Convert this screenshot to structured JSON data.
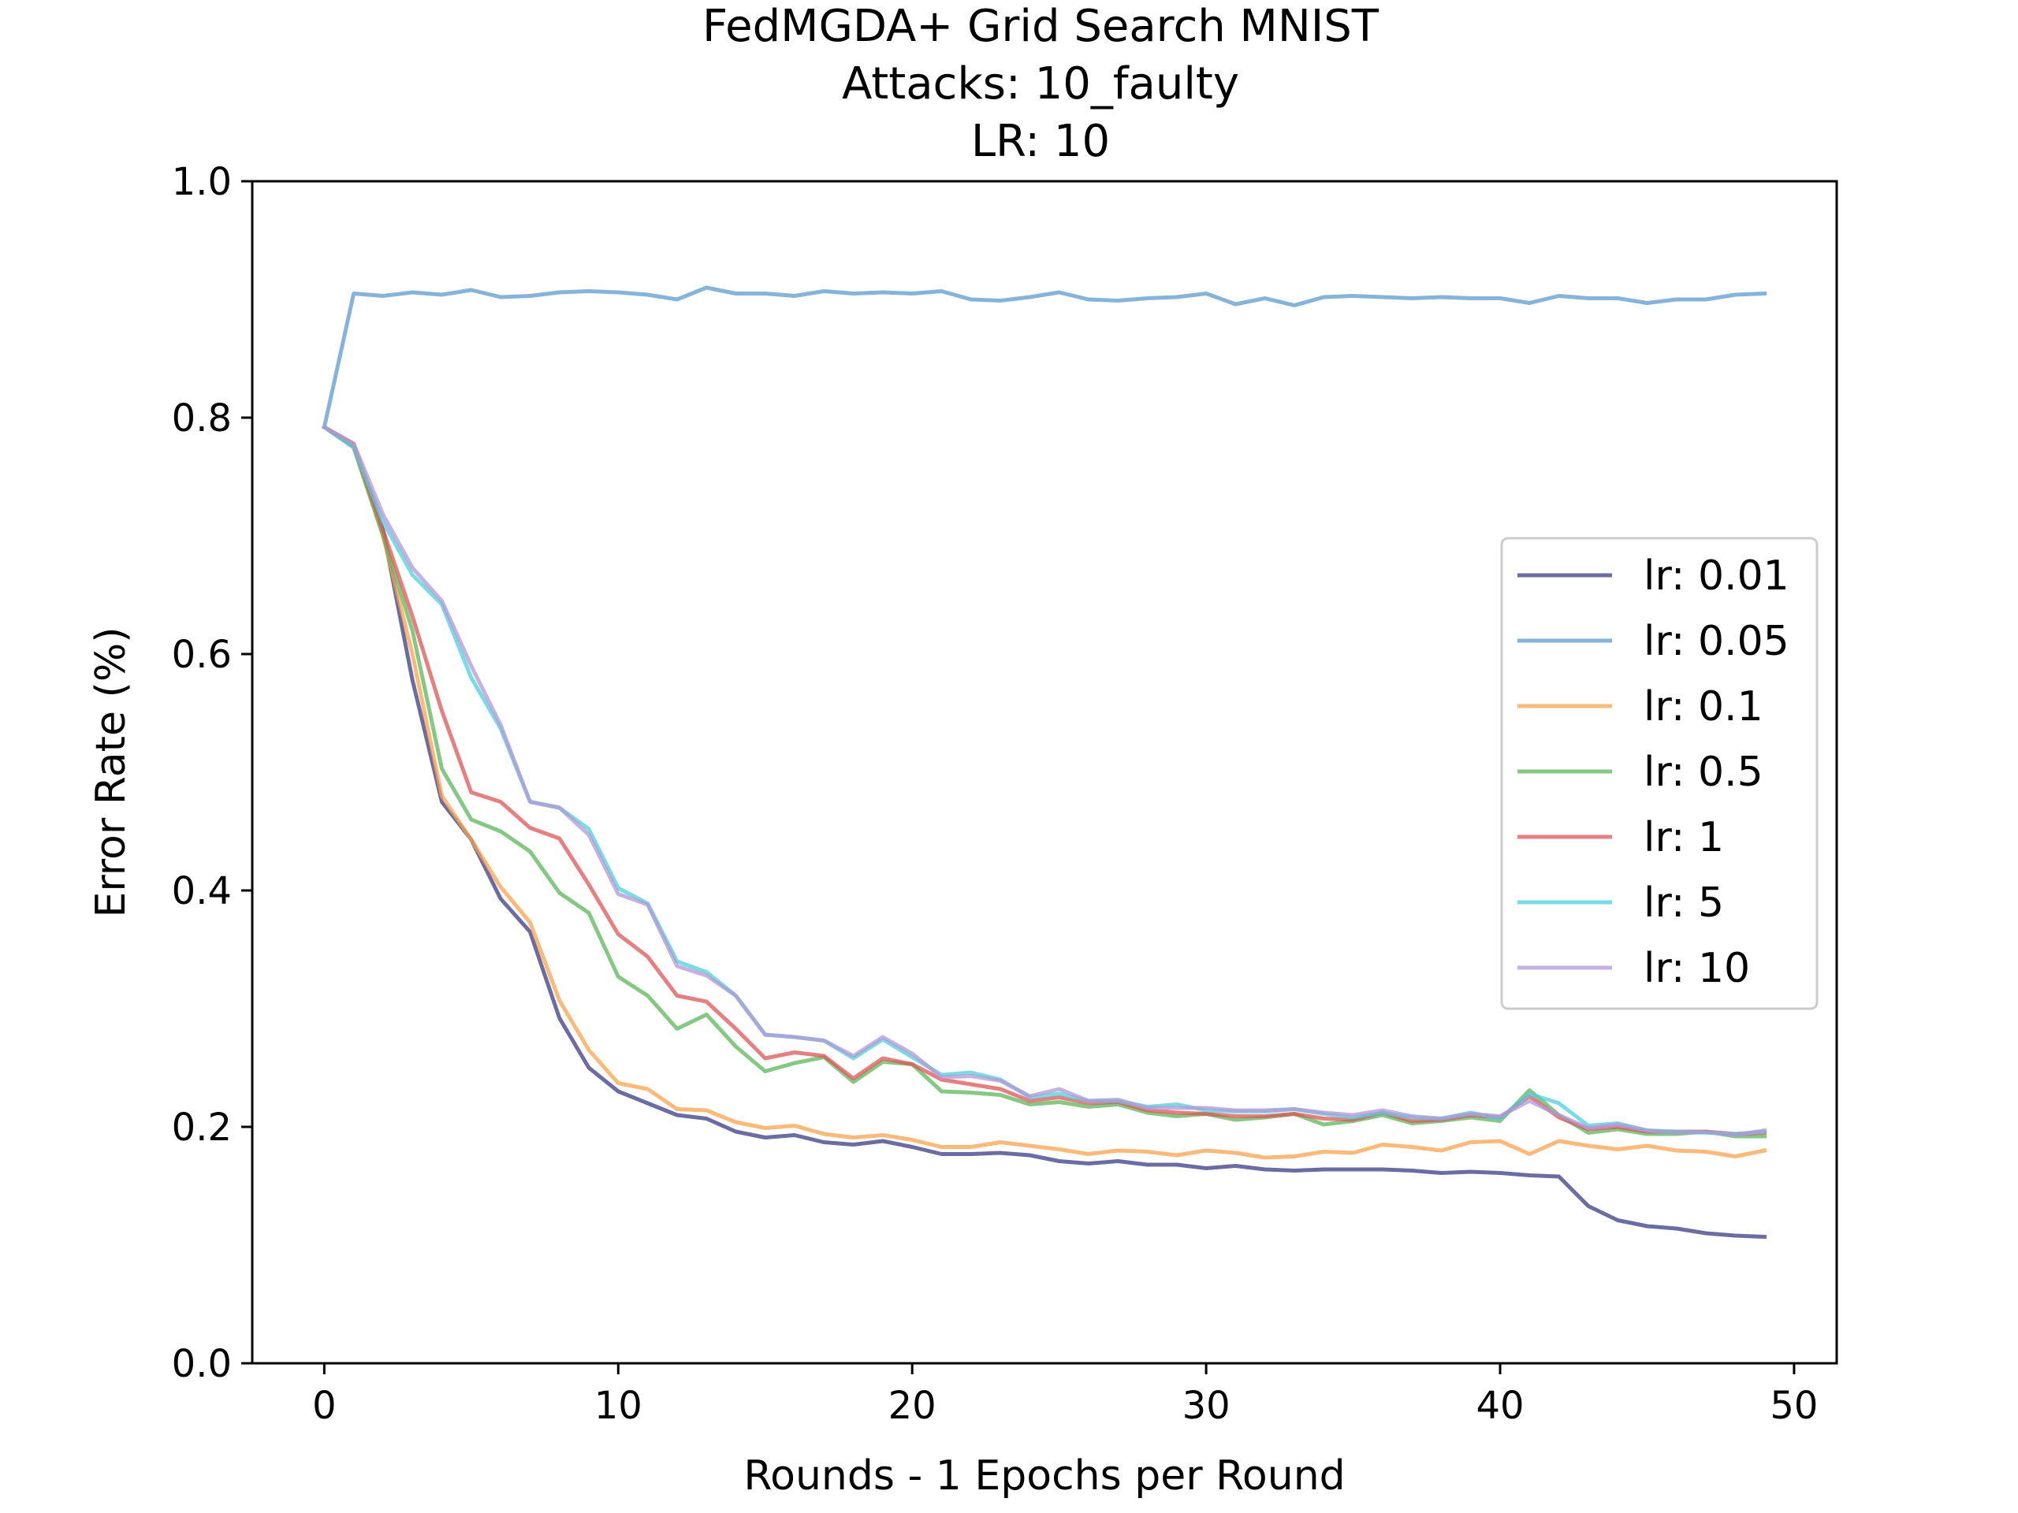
{
  "chart_data": {
    "type": "line",
    "title_lines": [
      "FedMGDA+ Grid Search MNIST",
      "Attacks: 10_faulty",
      "LR: 10"
    ],
    "xlabel": "Rounds - 1 Epochs per Round",
    "ylabel": "Error Rate (%)",
    "xlim": [
      -2.45,
      51.45
    ],
    "ylim": [
      0,
      1
    ],
    "xticks": [
      0,
      10,
      20,
      30,
      40,
      50
    ],
    "yticks": [
      0.0,
      0.2,
      0.4,
      0.6,
      0.8,
      1.0
    ],
    "xtick_labels": [
      "0",
      "10",
      "20",
      "30",
      "40",
      "50"
    ],
    "ytick_labels": [
      "0.0",
      "0.2",
      "0.4",
      "0.6",
      "0.8",
      "1.0"
    ],
    "grid": false,
    "legend_position": "center-right",
    "x": [
      0,
      1,
      2,
      3,
      4,
      5,
      6,
      7,
      8,
      9,
      10,
      11,
      12,
      13,
      14,
      15,
      16,
      17,
      18,
      19,
      20,
      21,
      22,
      23,
      24,
      25,
      26,
      27,
      28,
      29,
      30,
      31,
      32,
      33,
      34,
      35,
      36,
      37,
      38,
      39,
      40,
      41,
      42,
      43,
      44,
      45,
      46,
      47,
      48,
      49
    ],
    "series": [
      {
        "name": "lr: 0.01",
        "color": "#3b3b86",
        "values": [
          0.792,
          0.775,
          0.705,
          0.578,
          0.475,
          0.443,
          0.393,
          0.365,
          0.292,
          0.25,
          0.23,
          0.22,
          0.21,
          0.207,
          0.196,
          0.191,
          0.193,
          0.187,
          0.185,
          0.188,
          0.183,
          0.177,
          0.177,
          0.178,
          0.176,
          0.171,
          0.169,
          0.171,
          0.168,
          0.168,
          0.165,
          0.167,
          0.164,
          0.163,
          0.164,
          0.164,
          0.164,
          0.163,
          0.161,
          0.162,
          0.161,
          0.159,
          0.158,
          0.133,
          0.121,
          0.116,
          0.114,
          0.11,
          0.108,
          0.107
        ]
      },
      {
        "name": "lr: 0.05",
        "color": "#5e9acd",
        "values": [
          0.792,
          0.905,
          0.903,
          0.906,
          0.904,
          0.908,
          0.902,
          0.903,
          0.906,
          0.907,
          0.906,
          0.904,
          0.9,
          0.91,
          0.905,
          0.905,
          0.903,
          0.907,
          0.905,
          0.906,
          0.905,
          0.907,
          0.9,
          0.899,
          0.902,
          0.906,
          0.9,
          0.899,
          0.901,
          0.902,
          0.905,
          0.896,
          0.901,
          0.895,
          0.902,
          0.903,
          0.902,
          0.901,
          0.902,
          0.901,
          0.901,
          0.897,
          0.903,
          0.901,
          0.901,
          0.897,
          0.9,
          0.9,
          0.904,
          0.905
        ]
      },
      {
        "name": "lr: 0.1",
        "color": "#f9a24e",
        "values": [
          0.792,
          0.775,
          0.7,
          0.6,
          0.48,
          0.443,
          0.403,
          0.373,
          0.307,
          0.265,
          0.237,
          0.232,
          0.215,
          0.214,
          0.204,
          0.199,
          0.201,
          0.194,
          0.191,
          0.193,
          0.189,
          0.183,
          0.183,
          0.187,
          0.184,
          0.181,
          0.177,
          0.18,
          0.179,
          0.176,
          0.18,
          0.178,
          0.174,
          0.175,
          0.179,
          0.178,
          0.185,
          0.183,
          0.18,
          0.187,
          0.188,
          0.177,
          0.188,
          0.184,
          0.181,
          0.184,
          0.18,
          0.179,
          0.175,
          0.18
        ]
      },
      {
        "name": "lr: 0.5",
        "color": "#5cb55a",
        "values": [
          0.792,
          0.775,
          0.7,
          0.62,
          0.503,
          0.46,
          0.45,
          0.433,
          0.398,
          0.381,
          0.327,
          0.311,
          0.283,
          0.295,
          0.268,
          0.247,
          0.254,
          0.259,
          0.238,
          0.255,
          0.253,
          0.23,
          0.229,
          0.227,
          0.219,
          0.221,
          0.217,
          0.219,
          0.212,
          0.209,
          0.211,
          0.206,
          0.208,
          0.211,
          0.202,
          0.205,
          0.21,
          0.203,
          0.205,
          0.208,
          0.205,
          0.231,
          0.21,
          0.195,
          0.198,
          0.194,
          0.194,
          0.196,
          0.192,
          0.192
        ]
      },
      {
        "name": "lr: 1",
        "color": "#dd5555",
        "values": [
          0.792,
          0.778,
          0.705,
          0.632,
          0.552,
          0.483,
          0.475,
          0.453,
          0.444,
          0.405,
          0.363,
          0.344,
          0.311,
          0.306,
          0.283,
          0.258,
          0.263,
          0.26,
          0.241,
          0.258,
          0.253,
          0.24,
          0.236,
          0.232,
          0.222,
          0.225,
          0.22,
          0.221,
          0.214,
          0.212,
          0.211,
          0.209,
          0.209,
          0.211,
          0.207,
          0.206,
          0.212,
          0.205,
          0.206,
          0.21,
          0.208,
          0.226,
          0.208,
          0.198,
          0.2,
          0.196,
          0.196,
          0.196,
          0.194,
          0.195
        ]
      },
      {
        "name": "lr: 5",
        "color": "#4fcfdc",
        "values": [
          0.792,
          0.775,
          0.712,
          0.667,
          0.642,
          0.58,
          0.537,
          0.475,
          0.47,
          0.452,
          0.402,
          0.389,
          0.34,
          0.331,
          0.311,
          0.278,
          0.276,
          0.273,
          0.258,
          0.274,
          0.259,
          0.244,
          0.246,
          0.24,
          0.225,
          0.228,
          0.222,
          0.222,
          0.217,
          0.219,
          0.214,
          0.213,
          0.213,
          0.215,
          0.211,
          0.208,
          0.212,
          0.208,
          0.207,
          0.212,
          0.207,
          0.228,
          0.22,
          0.201,
          0.203,
          0.197,
          0.196,
          0.195,
          0.194,
          0.196
        ]
      },
      {
        "name": "lr: 10",
        "color": "#b198d6",
        "values": [
          0.792,
          0.778,
          0.718,
          0.673,
          0.645,
          0.59,
          0.54,
          0.475,
          0.47,
          0.447,
          0.397,
          0.388,
          0.336,
          0.328,
          0.311,
          0.278,
          0.276,
          0.273,
          0.26,
          0.276,
          0.262,
          0.242,
          0.243,
          0.239,
          0.226,
          0.232,
          0.222,
          0.223,
          0.216,
          0.216,
          0.216,
          0.214,
          0.214,
          0.215,
          0.212,
          0.21,
          0.214,
          0.209,
          0.207,
          0.211,
          0.209,
          0.222,
          0.21,
          0.199,
          0.202,
          0.197,
          0.195,
          0.196,
          0.193,
          0.197
        ]
      }
    ]
  }
}
